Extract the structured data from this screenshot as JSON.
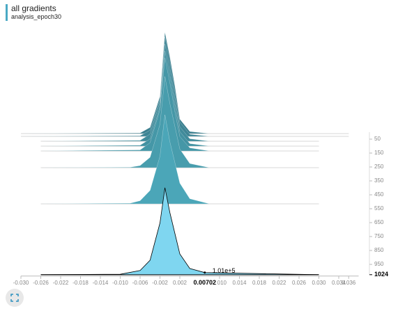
{
  "chart_data": {
    "type": "histogram-offset",
    "title": "all gradients",
    "subtitle": "analysis_epoch30",
    "xlim": [
      -0.03,
      0.038
    ],
    "xticks": [
      {
        "value": -0.03,
        "label": "-0.030"
      },
      {
        "value": -0.026,
        "label": "-0.026"
      },
      {
        "value": -0.022,
        "label": "-0.022"
      },
      {
        "value": -0.018,
        "label": "-0.018"
      },
      {
        "value": -0.014,
        "label": "-0.014"
      },
      {
        "value": -0.01,
        "label": "-0.010"
      },
      {
        "value": -0.006,
        "label": "-0.006"
      },
      {
        "value": -0.002,
        "label": "-0.002"
      },
      {
        "value": 0.002,
        "label": "0.002"
      },
      {
        "value": 0.01,
        "label": "0.010"
      },
      {
        "value": 0.014,
        "label": "0.014"
      },
      {
        "value": 0.018,
        "label": "0.018"
      },
      {
        "value": 0.022,
        "label": "0.022"
      },
      {
        "value": 0.026,
        "label": "0.026"
      },
      {
        "value": 0.03,
        "label": "0.030"
      },
      {
        "value": 0.034,
        "label": "0.034"
      },
      {
        "value": 0.036,
        "label": "0.036"
      }
    ],
    "steplim": [
      0,
      1024
    ],
    "stepticks": [
      50,
      150,
      250,
      350,
      450,
      550,
      650,
      750,
      850,
      950
    ],
    "countlim": [
      0,
      4200000
    ],
    "series": [
      {
        "step": 10,
        "color": "#3b7f8f",
        "x": [
          -0.03,
          -0.006,
          -0.004,
          -0.002,
          -0.001,
          0.0,
          0.001,
          0.002,
          0.004,
          0.008,
          0.036
        ],
        "values": [
          0,
          30000,
          300000,
          1800000,
          4900000,
          3700000,
          2300000,
          700000,
          100000,
          0,
          0
        ]
      },
      {
        "step": 30,
        "color": "#3e8595",
        "x": [
          -0.03,
          -0.006,
          -0.004,
          -0.002,
          -0.001,
          0.0,
          0.001,
          0.002,
          0.004,
          0.008,
          0.036
        ],
        "values": [
          0,
          30000,
          300000,
          1800000,
          4800000,
          3600000,
          2200000,
          700000,
          100000,
          0,
          0
        ]
      },
      {
        "step": 65,
        "color": "#408b9b",
        "x": [
          -0.026,
          -0.006,
          -0.004,
          -0.002,
          -0.001,
          0.0,
          0.001,
          0.002,
          0.004,
          0.008,
          0.03
        ],
        "values": [
          0,
          40000,
          350000,
          1900000,
          4700000,
          3500000,
          2100000,
          700000,
          120000,
          0,
          0
        ]
      },
      {
        "step": 100,
        "color": "#4291a1",
        "x": [
          -0.026,
          -0.006,
          -0.004,
          -0.002,
          -0.001,
          0.0,
          0.001,
          0.002,
          0.004,
          0.008,
          0.03
        ],
        "values": [
          0,
          40000,
          350000,
          1900000,
          4600000,
          3400000,
          2000000,
          700000,
          120000,
          0,
          0
        ]
      },
      {
        "step": 135,
        "color": "#4597a7",
        "x": [
          -0.026,
          -0.006,
          -0.004,
          -0.002,
          -0.001,
          0.0,
          0.001,
          0.002,
          0.004,
          0.008,
          0.03
        ],
        "values": [
          0,
          50000,
          400000,
          2000000,
          4500000,
          3300000,
          1900000,
          700000,
          150000,
          0,
          0
        ]
      },
      {
        "step": 255,
        "color": "#489dad",
        "x": [
          -0.026,
          -0.008,
          -0.006,
          -0.004,
          -0.002,
          -0.001,
          0.0,
          0.002,
          0.004,
          0.008,
          0.03
        ],
        "values": [
          0,
          20000,
          100000,
          500000,
          2100000,
          4400000,
          3100000,
          900000,
          200000,
          0,
          0
        ]
      },
      {
        "step": 515,
        "color": "#4ba6b8",
        "x": [
          -0.026,
          -0.008,
          -0.006,
          -0.004,
          -0.002,
          -0.001,
          0.0,
          0.002,
          0.004,
          0.008,
          0.03
        ],
        "values": [
          0,
          30000,
          150000,
          650000,
          2300000,
          4300000,
          3000000,
          1000000,
          250000,
          0,
          0
        ]
      },
      {
        "step": 1024,
        "color": "#7fd6f0",
        "x": [
          -0.026,
          -0.01,
          -0.006,
          -0.004,
          -0.002,
          -0.001,
          0.0,
          0.002,
          0.004,
          0.00702,
          0.03
        ],
        "values": [
          0,
          20000,
          200000,
          700000,
          2500000,
          4200000,
          3000000,
          1000000,
          300000,
          101000,
          0
        ]
      }
    ],
    "hover": {
      "x": {
        "value": 0.00702,
        "label": "0.00702"
      },
      "count": {
        "value": 101000,
        "label": "1.01e+5"
      },
      "step": {
        "value": 1024,
        "label": "1024"
      }
    }
  }
}
